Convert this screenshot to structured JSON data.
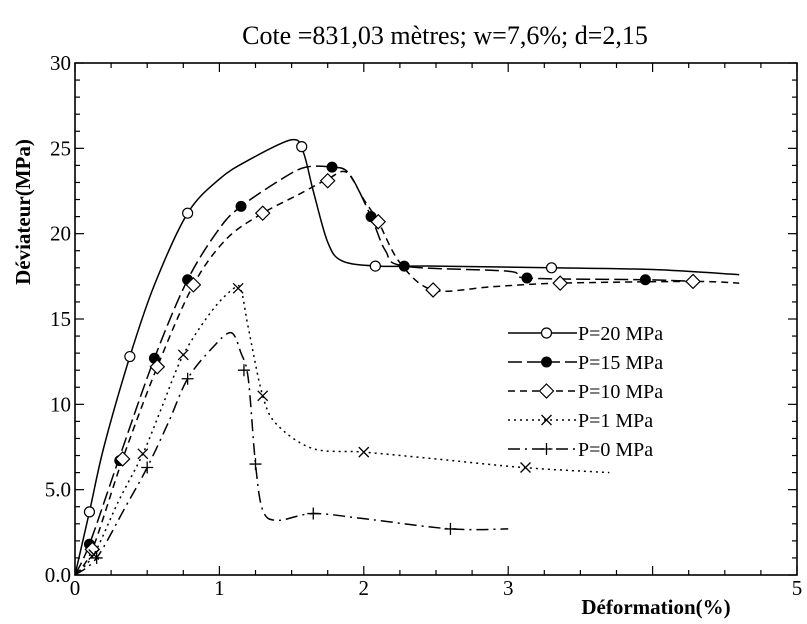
{
  "chart_data": {
    "type": "line",
    "title": "Cote =831,03 mètres; w=7,6%; d=2,15",
    "xlabel": "Déformation(%)",
    "ylabel": "Déviateur(MPa)",
    "xlim": [
      0,
      5
    ],
    "ylim": [
      0,
      30
    ],
    "x_ticks": [
      "0",
      "1",
      "2",
      "3",
      "5"
    ],
    "x_tick_values": [
      0,
      1,
      2,
      3,
      5
    ],
    "y_ticks": [
      "0.0",
      "5.0",
      "10",
      "15",
      "20",
      "25",
      "30"
    ],
    "y_tick_values": [
      0,
      5,
      10,
      15,
      20,
      25,
      30
    ],
    "grid": false,
    "legend_position": "right-middle",
    "series": [
      {
        "name": "P=20 MPa",
        "dash": "none",
        "marker": "open-circle",
        "curve": [
          [
            0,
            0
          ],
          [
            0.1,
            3.7
          ],
          [
            0.2,
            7.5
          ],
          [
            0.38,
            12.8
          ],
          [
            0.55,
            17
          ],
          [
            0.78,
            21.2
          ],
          [
            1.0,
            23.2
          ],
          [
            1.2,
            24.3
          ],
          [
            1.5,
            25.5
          ],
          [
            1.58,
            24.8
          ],
          [
            1.65,
            22.5
          ],
          [
            1.75,
            19.5
          ],
          [
            1.85,
            18.4
          ],
          [
            2.1,
            18.1
          ],
          [
            2.5,
            18.1
          ],
          [
            3.3,
            18.0
          ],
          [
            4.0,
            17.9
          ],
          [
            4.6,
            17.6
          ]
        ],
        "markers": [
          [
            0.1,
            3.7
          ],
          [
            0.38,
            12.8
          ],
          [
            0.78,
            21.2
          ],
          [
            1.57,
            25.1
          ],
          [
            2.08,
            18.1
          ],
          [
            3.3,
            18.0
          ]
        ]
      },
      {
        "name": "P=15 MPa",
        "dash": "long",
        "marker": "filled-circle",
        "curve": [
          [
            0,
            0
          ],
          [
            0.1,
            1.8
          ],
          [
            0.3,
            6.7
          ],
          [
            0.55,
            12.7
          ],
          [
            0.78,
            17.3
          ],
          [
            1.0,
            20.3
          ],
          [
            1.15,
            21.6
          ],
          [
            1.45,
            23.3
          ],
          [
            1.6,
            23.9
          ],
          [
            1.78,
            23.9
          ],
          [
            1.9,
            23.5
          ],
          [
            2.05,
            21.0
          ],
          [
            2.15,
            19.0
          ],
          [
            2.28,
            18.1
          ],
          [
            3.0,
            17.8
          ],
          [
            3.13,
            17.4
          ],
          [
            3.95,
            17.3
          ],
          [
            4.3,
            17.2
          ]
        ],
        "markers": [
          [
            0.1,
            1.8
          ],
          [
            0.31,
            6.7
          ],
          [
            0.55,
            12.7
          ],
          [
            0.78,
            17.3
          ],
          [
            1.15,
            21.6
          ],
          [
            1.78,
            23.9
          ],
          [
            2.05,
            21.0
          ],
          [
            2.28,
            18.1
          ],
          [
            3.13,
            17.4
          ],
          [
            3.95,
            17.3
          ]
        ]
      },
      {
        "name": "P=10 MPa",
        "dash": "medium",
        "marker": "open-diamond",
        "curve": [
          [
            0,
            0
          ],
          [
            0.12,
            1.5
          ],
          [
            0.33,
            6.8
          ],
          [
            0.57,
            12.2
          ],
          [
            0.82,
            17.0
          ],
          [
            1.05,
            19.7
          ],
          [
            1.3,
            21.2
          ],
          [
            1.55,
            22.3
          ],
          [
            1.75,
            23.2
          ],
          [
            1.88,
            23.6
          ],
          [
            2.0,
            22.0
          ],
          [
            2.1,
            20.7
          ],
          [
            2.25,
            18.3
          ],
          [
            2.48,
            16.7
          ],
          [
            2.9,
            16.9
          ],
          [
            3.36,
            17.1
          ],
          [
            4.28,
            17.2
          ],
          [
            4.6,
            17.1
          ]
        ],
        "markers": [
          [
            0.12,
            1.5
          ],
          [
            0.33,
            6.8
          ],
          [
            0.57,
            12.2
          ],
          [
            0.82,
            17.0
          ],
          [
            1.3,
            21.2
          ],
          [
            1.75,
            23.1
          ],
          [
            2.1,
            20.7
          ],
          [
            2.48,
            16.7
          ],
          [
            3.36,
            17.1
          ],
          [
            4.28,
            17.2
          ]
        ]
      },
      {
        "name": "P=1 MPa",
        "dash": "dotted",
        "marker": "x",
        "curve": [
          [
            0,
            0
          ],
          [
            0.13,
            1.2
          ],
          [
            0.3,
            4.3
          ],
          [
            0.47,
            7.1
          ],
          [
            0.6,
            9.8
          ],
          [
            0.75,
            12.9
          ],
          [
            0.95,
            15.5
          ],
          [
            1.1,
            16.8
          ],
          [
            1.15,
            16.7
          ],
          [
            1.2,
            14.5
          ],
          [
            1.3,
            10.5
          ],
          [
            1.4,
            8.8
          ],
          [
            1.65,
            7.4
          ],
          [
            2.0,
            7.2
          ],
          [
            2.5,
            6.8
          ],
          [
            3.1,
            6.3
          ],
          [
            3.7,
            6.0
          ]
        ],
        "markers": [
          [
            0.13,
            1.2
          ],
          [
            0.47,
            7.1
          ],
          [
            0.75,
            12.9
          ],
          [
            1.13,
            16.8
          ],
          [
            1.3,
            10.5
          ],
          [
            2.0,
            7.2
          ],
          [
            3.12,
            6.3
          ]
        ]
      },
      {
        "name": "P=0 MPa",
        "dash": "dash-dot",
        "marker": "plus",
        "curve": [
          [
            0,
            0
          ],
          [
            0.15,
            1.0
          ],
          [
            0.35,
            4.0
          ],
          [
            0.5,
            6.3
          ],
          [
            0.65,
            9.0
          ],
          [
            0.78,
            11.5
          ],
          [
            0.95,
            13.3
          ],
          [
            1.08,
            14.2
          ],
          [
            1.15,
            13.0
          ],
          [
            1.2,
            11.5
          ],
          [
            1.25,
            6.5
          ],
          [
            1.3,
            3.8
          ],
          [
            1.4,
            3.2
          ],
          [
            1.65,
            3.6
          ],
          [
            2.0,
            3.3
          ],
          [
            2.6,
            2.7
          ],
          [
            3.0,
            2.7
          ]
        ],
        "markers": [
          [
            0.15,
            1.0
          ],
          [
            0.5,
            6.3
          ],
          [
            0.78,
            11.5
          ],
          [
            1.17,
            12.0
          ],
          [
            1.25,
            6.5
          ],
          [
            1.65,
            3.6
          ],
          [
            2.6,
            2.7
          ]
        ]
      }
    ]
  }
}
